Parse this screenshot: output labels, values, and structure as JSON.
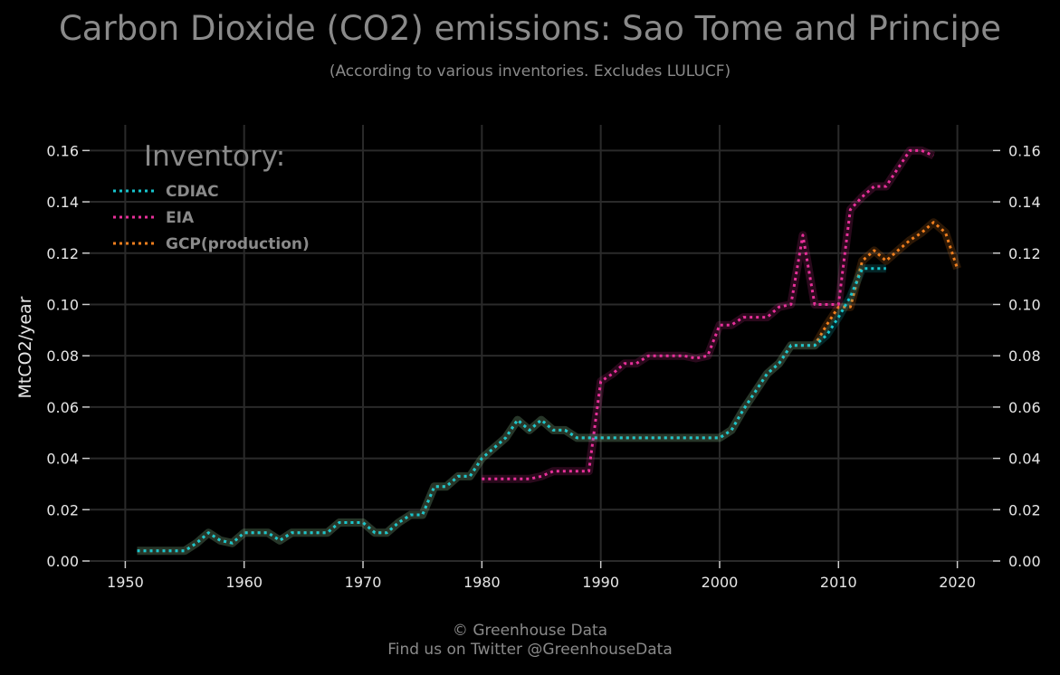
{
  "title": "Carbon Dioxide (CO2) emissions: Sao Tome and Principe",
  "subtitle": "(According to various inventories. Excludes LULUCF)",
  "footer": {
    "line1": "© Greenhouse Data",
    "line2": "Find us on Twitter @GreenhouseData"
  },
  "colors": {
    "background": "#000000",
    "grid": "#2a2a2a",
    "text": "#8a8a8a",
    "ticks": "#e6e6e6"
  },
  "chart_data": {
    "type": "line",
    "title": "Carbon Dioxide (CO2) emissions: Sao Tome and Principe",
    "subtitle": "(According to various inventories. Excludes LULUCF)",
    "xlabel": "",
    "ylabel": "MtCO2/year",
    "xlim": [
      1947,
      2023
    ],
    "ylim": [
      0,
      0.17
    ],
    "grid": true,
    "legend_title": "Inventory:",
    "legend_position": "top-left",
    "x_ticks": [
      "1950",
      "1960",
      "1970",
      "1980",
      "1990",
      "2000",
      "2010",
      "2020"
    ],
    "y_ticks": [
      "0.00",
      "0.02",
      "0.04",
      "0.06",
      "0.08",
      "0.10",
      "0.12",
      "0.14",
      "0.16"
    ],
    "series": [
      {
        "name": "CDIAC",
        "color": "#17c6cf",
        "x": [
          1951,
          1952,
          1953,
          1954,
          1955,
          1956,
          1957,
          1958,
          1959,
          1960,
          1961,
          1962,
          1963,
          1964,
          1965,
          1966,
          1967,
          1968,
          1969,
          1970,
          1971,
          1972,
          1973,
          1974,
          1975,
          1976,
          1977,
          1978,
          1979,
          1980,
          1981,
          1982,
          1983,
          1984,
          1985,
          1986,
          1987,
          1988,
          1989,
          1990,
          1991,
          1992,
          1993,
          1994,
          1995,
          1996,
          1997,
          1998,
          1999,
          2000,
          2001,
          2002,
          2003,
          2004,
          2005,
          2006,
          2007,
          2008,
          2009,
          2010,
          2011,
          2012,
          2013,
          2014
        ],
        "y": [
          0.004,
          0.004,
          0.004,
          0.004,
          0.004,
          0.007,
          0.011,
          0.008,
          0.007,
          0.011,
          0.011,
          0.011,
          0.008,
          0.011,
          0.011,
          0.011,
          0.011,
          0.015,
          0.015,
          0.015,
          0.011,
          0.011,
          0.015,
          0.018,
          0.018,
          0.029,
          0.029,
          0.033,
          0.033,
          0.04,
          0.044,
          0.048,
          0.055,
          0.051,
          0.055,
          0.051,
          0.051,
          0.048,
          0.048,
          0.048,
          0.048,
          0.048,
          0.048,
          0.048,
          0.048,
          0.048,
          0.048,
          0.048,
          0.048,
          0.048,
          0.051,
          0.059,
          0.066,
          0.073,
          0.077,
          0.084,
          0.084,
          0.084,
          0.088,
          0.095,
          0.103,
          0.114,
          0.114,
          0.114
        ]
      },
      {
        "name": "EIA",
        "color": "#e8309a",
        "x": [
          1980,
          1981,
          1982,
          1983,
          1984,
          1985,
          1986,
          1987,
          1988,
          1989,
          1990,
          1991,
          1992,
          1993,
          1994,
          1995,
          1996,
          1997,
          1998,
          1999,
          2000,
          2001,
          2002,
          2003,
          2004,
          2005,
          2006,
          2007,
          2008,
          2009,
          2010,
          2011,
          2012,
          2013,
          2014,
          2015,
          2016,
          2017,
          2018
        ],
        "y": [
          0.032,
          0.032,
          0.032,
          0.032,
          0.032,
          0.033,
          0.035,
          0.035,
          0.035,
          0.035,
          0.07,
          0.073,
          0.077,
          0.077,
          0.08,
          0.08,
          0.08,
          0.08,
          0.079,
          0.08,
          0.092,
          0.092,
          0.095,
          0.095,
          0.095,
          0.099,
          0.1,
          0.127,
          0.1,
          0.1,
          0.1,
          0.137,
          0.142,
          0.146,
          0.146,
          0.153,
          0.16,
          0.16,
          0.158
        ]
      },
      {
        "name": "GCP(production)",
        "color": "#f07f1e",
        "x": [
          1951,
          1952,
          1953,
          1954,
          1955,
          1956,
          1957,
          1958,
          1959,
          1960,
          1961,
          1962,
          1963,
          1964,
          1965,
          1966,
          1967,
          1968,
          1969,
          1970,
          1971,
          1972,
          1973,
          1974,
          1975,
          1976,
          1977,
          1978,
          1979,
          1980,
          1981,
          1982,
          1983,
          1984,
          1985,
          1986,
          1987,
          1988,
          1989,
          1990,
          1991,
          1992,
          1993,
          1994,
          1995,
          1996,
          1997,
          1998,
          1999,
          2000,
          2001,
          2002,
          2003,
          2004,
          2005,
          2006,
          2007,
          2008,
          2009,
          2010,
          2011,
          2012,
          2013,
          2014,
          2015,
          2016,
          2017,
          2018,
          2019,
          2020
        ],
        "y": [
          0.004,
          0.004,
          0.004,
          0.004,
          0.004,
          0.007,
          0.011,
          0.008,
          0.007,
          0.011,
          0.011,
          0.011,
          0.008,
          0.011,
          0.011,
          0.011,
          0.011,
          0.015,
          0.015,
          0.015,
          0.011,
          0.011,
          0.015,
          0.018,
          0.018,
          0.029,
          0.029,
          0.033,
          0.033,
          0.04,
          0.044,
          0.048,
          0.055,
          0.051,
          0.055,
          0.051,
          0.051,
          0.048,
          0.048,
          0.048,
          0.048,
          0.048,
          0.048,
          0.048,
          0.048,
          0.048,
          0.048,
          0.048,
          0.048,
          0.048,
          0.051,
          0.059,
          0.066,
          0.073,
          0.077,
          0.084,
          0.084,
          0.084,
          0.092,
          0.099,
          0.099,
          0.117,
          0.121,
          0.117,
          0.121,
          0.125,
          0.128,
          0.132,
          0.128,
          0.114
        ]
      }
    ]
  }
}
